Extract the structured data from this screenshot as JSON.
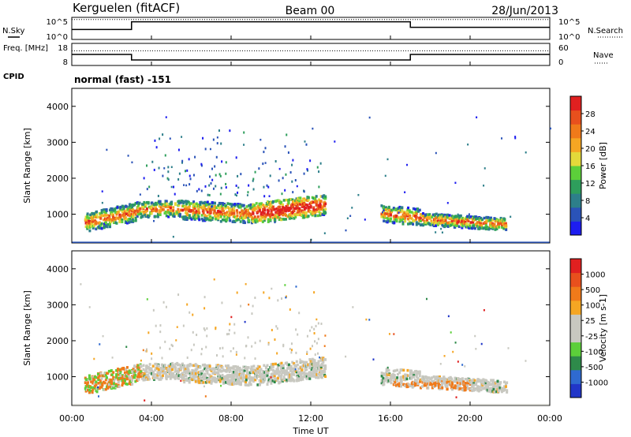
{
  "header": {
    "station": "Kerguelen (fitACF)",
    "beam": "Beam 00",
    "date": "28/Jun/2013"
  },
  "chart_data": [
    {
      "type": "line",
      "panel": "noise",
      "left_label": "N.Sky",
      "right_label": "N.Search",
      "left_ticks": [
        "10^5",
        "10^0"
      ],
      "right_ticks": [
        "10^5",
        "10^0"
      ],
      "series_sky": {
        "x_hours": [
          0,
          3,
          3,
          17,
          17,
          24
        ],
        "level": [
          0.45,
          0.45,
          0.8,
          0.8,
          0.55,
          0.55
        ]
      },
      "series_search": {
        "x_hours": [
          0,
          24
        ],
        "level": [
          0.9,
          0.9
        ]
      }
    },
    {
      "type": "line",
      "panel": "frequency",
      "left_label": "Freq. [MHz]",
      "right_label": "Nave",
      "left_ticks": [
        "18",
        "8"
      ],
      "right_ticks": [
        "60",
        "0"
      ],
      "freq_mhz": {
        "x_hours": [
          0,
          3,
          3,
          17,
          17,
          24
        ],
        "values": [
          13,
          13,
          10.5,
          10.5,
          13,
          13
        ]
      },
      "nave": {
        "x_hours": [
          0,
          24
        ],
        "values": [
          40,
          40
        ]
      },
      "cpid_label": "CPID",
      "cpid_text": "normal (fast) -151"
    },
    {
      "type": "heatmap",
      "panel": "power",
      "ylabel": "Slant Range [km]",
      "ylim": [
        200,
        4500
      ],
      "yticks": [
        1000,
        2000,
        3000,
        4000
      ],
      "colorbar_label": "Power [dB]",
      "colorbar_ticks": [
        "28",
        "24",
        "20",
        "16",
        "12",
        "8",
        "4"
      ],
      "colors": [
        "#1d1df0",
        "#2a53b8",
        "#2d7f8a",
        "#2e9e5c",
        "#5ccf3a",
        "#e3d93a",
        "#f5a623",
        "#f07a1a",
        "#e8501d",
        "#e02020"
      ]
    },
    {
      "type": "heatmap",
      "panel": "velocity",
      "ylabel": "Slant Range [km]",
      "ylim": [
        200,
        4500
      ],
      "yticks": [
        1000,
        2000,
        3000,
        4000
      ],
      "colorbar_label": "Velocity [m s-1]",
      "colorbar_ticks": [
        "1000",
        "500",
        "100",
        "25",
        "-25",
        "-100",
        "-500",
        "-1000"
      ],
      "colors": [
        "#2136c8",
        "#2f6ad0",
        "#2e8a4a",
        "#5ccf3a",
        "#c8c8c0",
        "#c8c8c0",
        "#f5a623",
        "#f07a1a",
        "#e8501d",
        "#e02020"
      ],
      "xlabel": "Time UT",
      "xticks": [
        "00:00",
        "04:00",
        "08:00",
        "12:00",
        "16:00",
        "20:00",
        "00:00"
      ],
      "xlim_hours": [
        0,
        24
      ]
    }
  ]
}
